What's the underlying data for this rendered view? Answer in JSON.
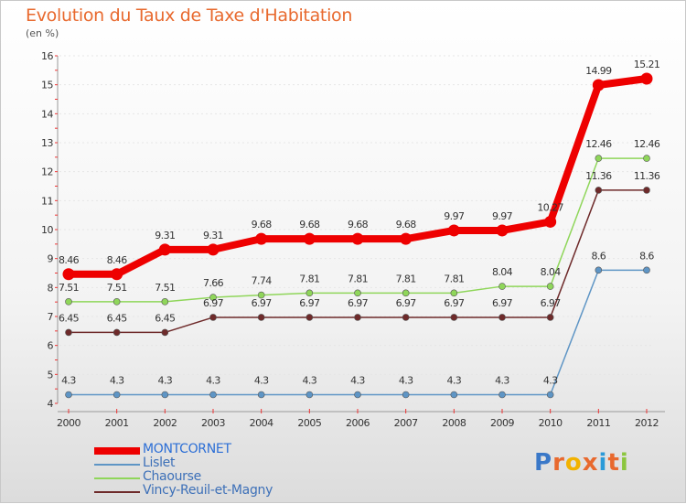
{
  "chart_data": {
    "type": "line",
    "title": "Evolution du Taux de Taxe d'Habitation",
    "ylabel": "(en %)",
    "xlabel": "",
    "x": [
      "2000",
      "2001",
      "2002",
      "2003",
      "2004",
      "2005",
      "2006",
      "2007",
      "2008",
      "2009",
      "2010",
      "2011",
      "2012"
    ],
    "yticks": [
      "4",
      "5",
      "6",
      "7",
      "8",
      "9",
      "10",
      "11",
      "12",
      "13",
      "14",
      "15",
      "16"
    ],
    "ylim": [
      4,
      16
    ],
    "legend_position": "bottom-left",
    "series": [
      {
        "name": "MONTCORNET",
        "color": "#ee0000",
        "values": [
          8.46,
          8.46,
          9.31,
          9.31,
          9.68,
          9.68,
          9.68,
          9.68,
          9.97,
          9.97,
          10.27,
          14.99,
          15.21
        ],
        "labels": [
          "8.46",
          "8.46",
          "9.31",
          "9.31",
          "9.68",
          "9.68",
          "9.68",
          "9.68",
          "9.97",
          "9.97",
          "10.27",
          "14.99",
          "15.21"
        ]
      },
      {
        "name": "Lislet",
        "color": "#5e95c5",
        "values": [
          4.3,
          4.3,
          4.3,
          4.3,
          4.3,
          4.3,
          4.3,
          4.3,
          4.3,
          4.3,
          4.3,
          8.6,
          8.6
        ],
        "labels": [
          "4.3",
          "4.3",
          "4.3",
          "4.3",
          "4.3",
          "4.3",
          "4.3",
          "4.3",
          "4.3",
          "4.3",
          "4.3",
          "8.6",
          "8.6"
        ]
      },
      {
        "name": "Chaourse",
        "color": "#8fd65a",
        "values": [
          7.51,
          7.51,
          7.51,
          7.66,
          7.74,
          7.81,
          7.81,
          7.81,
          7.81,
          8.04,
          8.04,
          12.46,
          12.46
        ],
        "labels": [
          "7.51",
          "7.51",
          "7.51",
          "7.66",
          "7.74",
          "7.81",
          "7.81",
          "7.81",
          "7.81",
          "8.04",
          "8.04",
          "12.46",
          "12.46"
        ]
      },
      {
        "name": "Vincy-Reuil-et-Magny",
        "color": "#6e2a2a",
        "values": [
          6.45,
          6.45,
          6.45,
          6.97,
          6.97,
          6.97,
          6.97,
          6.97,
          6.97,
          6.97,
          6.97,
          11.36,
          11.36
        ],
        "labels": [
          "6.45",
          "6.45",
          "6.45",
          "6.97",
          "6.97",
          "6.97",
          "6.97",
          "6.97",
          "6.97",
          "6.97",
          "6.97",
          "11.36",
          "11.36"
        ]
      }
    ]
  },
  "brand": {
    "letters": [
      "P",
      "r",
      "o",
      "x",
      "i",
      "t",
      "i"
    ],
    "colors": [
      "#3a78c8",
      "#e8692e",
      "#f2b200",
      "#e8692e",
      "#2a9ad8",
      "#e8692e",
      "#8cc63f"
    ]
  }
}
